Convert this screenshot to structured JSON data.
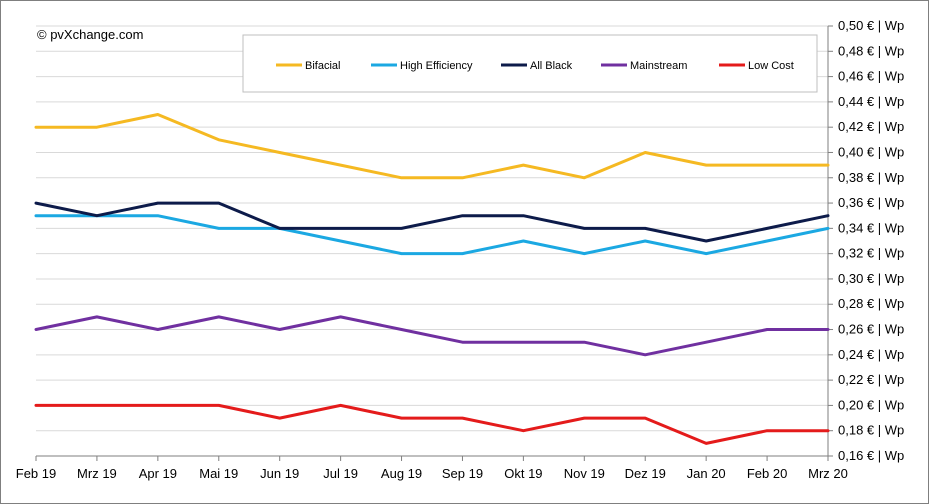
{
  "credit": "© pvXchange.com",
  "chart_data": {
    "type": "line",
    "title": "",
    "xlabel": "",
    "ylabel": "",
    "categories": [
      "Feb 19",
      "Mrz 19",
      "Apr 19",
      "Mai 19",
      "Jun 19",
      "Jul 19",
      "Aug 19",
      "Sep 19",
      "Okt 19",
      "Nov 19",
      "Dez 19",
      "Jan 20",
      "Feb 20",
      "Mrz 20"
    ],
    "ylim": [
      0.16,
      0.5
    ],
    "ytick_step": 0.02,
    "ytick_format": "{v} € | Wp",
    "yticks": [
      "0,16 € | Wp",
      "0,18 € | Wp",
      "0,20 € | Wp",
      "0,22 € | Wp",
      "0,24 € | Wp",
      "0,26 € | Wp",
      "0,28 € | Wp",
      "0,30 € | Wp",
      "0,32 € | Wp",
      "0,34 € | Wp",
      "0,36 € | Wp",
      "0,38 € | Wp",
      "0,40 € | Wp",
      "0,42 € | Wp",
      "0,44 € | Wp",
      "0,46 € | Wp",
      "0,48 € | Wp",
      "0,50 € | Wp"
    ],
    "grid": true,
    "legend_position": "top",
    "series": [
      {
        "name": "Bifacial",
        "color": "#F5B922",
        "values": [
          0.42,
          0.42,
          0.43,
          0.41,
          0.4,
          0.39,
          0.38,
          0.38,
          0.39,
          0.38,
          0.4,
          0.39,
          0.39,
          0.39
        ]
      },
      {
        "name": "High Efficiency",
        "color": "#1BA8E2",
        "values": [
          0.35,
          0.35,
          0.35,
          0.34,
          0.34,
          0.33,
          0.32,
          0.32,
          0.33,
          0.32,
          0.33,
          0.32,
          0.33,
          0.34
        ]
      },
      {
        "name": "All Black",
        "color": "#0D1B4A",
        "values": [
          0.36,
          0.35,
          0.36,
          0.36,
          0.34,
          0.34,
          0.34,
          0.35,
          0.35,
          0.34,
          0.34,
          0.33,
          0.34,
          0.35
        ]
      },
      {
        "name": "Mainstream",
        "color": "#7030A0",
        "values": [
          0.26,
          0.27,
          0.26,
          0.27,
          0.26,
          0.27,
          0.26,
          0.25,
          0.25,
          0.25,
          0.24,
          0.25,
          0.26,
          0.26
        ]
      },
      {
        "name": "Low Cost",
        "color": "#E41B1B",
        "values": [
          0.2,
          0.2,
          0.2,
          0.2,
          0.19,
          0.2,
          0.19,
          0.19,
          0.18,
          0.19,
          0.19,
          0.17,
          0.18,
          0.18
        ]
      }
    ]
  }
}
